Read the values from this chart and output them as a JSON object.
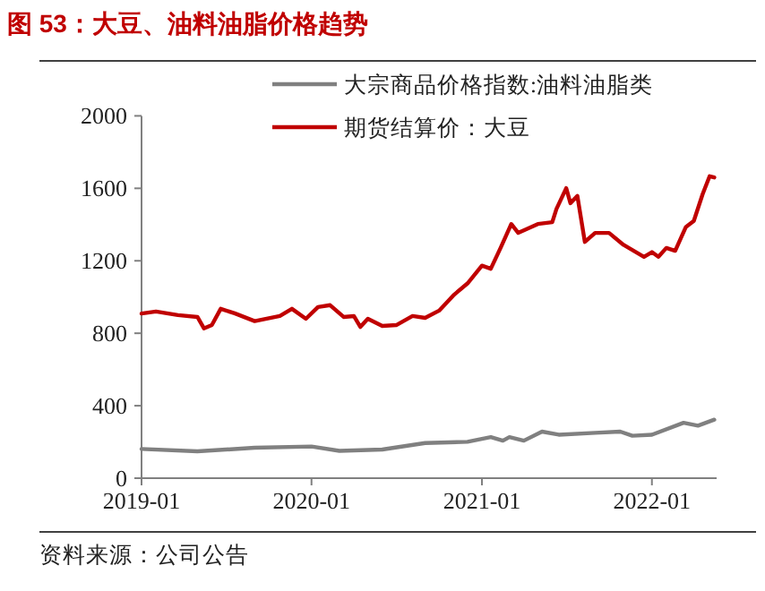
{
  "chart_data": {
    "type": "line",
    "title": "图 53：大豆、油料油脂价格趋势",
    "annotations": [
      "资料来源：公司公告"
    ],
    "xlim": [
      "2019-01-01",
      "2022-05-20"
    ],
    "xticks": [
      "2019-01",
      "2020-01",
      "2021-01",
      "2022-01"
    ],
    "ylim": [
      0,
      2000
    ],
    "yticks": [
      0,
      400,
      800,
      1200,
      1600,
      2000
    ],
    "grid": false,
    "legend": "top",
    "line_style": "solid",
    "series": [
      {
        "name": "大宗商品价格指数:油料油脂类",
        "color": "#808080",
        "x": [
          "2019-01-01",
          "2019-05-01",
          "2019-09-01",
          "2020-01-01",
          "2020-03-01",
          "2020-06-01",
          "2020-09-01",
          "2020-12-01",
          "2021-01-20",
          "2021-02-15",
          "2021-03-01",
          "2021-04-01",
          "2021-05-10",
          "2021-06-15",
          "2021-09-01",
          "2021-10-25",
          "2021-11-20",
          "2022-01-01",
          "2022-03-10",
          "2022-04-10",
          "2022-05-15"
        ],
        "values": [
          161,
          148,
          168,
          175,
          151,
          158,
          194,
          201,
          227,
          207,
          227,
          207,
          257,
          240,
          250,
          257,
          234,
          240,
          306,
          290,
          323
        ]
      },
      {
        "name": "期货结算价：大豆",
        "color": "#c00000",
        "x": [
          "2019-01-01",
          "2019-02-01",
          "2019-03-20",
          "2019-05-01",
          "2019-05-15",
          "2019-06-01",
          "2019-06-20",
          "2019-07-20",
          "2019-09-01",
          "2019-10-25",
          "2019-11-20",
          "2019-12-20",
          "2020-01-15",
          "2020-02-10",
          "2020-03-10",
          "2020-04-01",
          "2020-04-15",
          "2020-05-01",
          "2020-06-01",
          "2020-07-01",
          "2020-08-05",
          "2020-09-01",
          "2020-10-01",
          "2020-11-01",
          "2020-12-01",
          "2021-01-01",
          "2021-01-20",
          "2021-02-10",
          "2021-03-05",
          "2021-03-20",
          "2021-05-01",
          "2021-06-01",
          "2021-06-10",
          "2021-07-01",
          "2021-07-10",
          "2021-07-25",
          "2021-08-10",
          "2021-09-01",
          "2021-10-01",
          "2021-11-01",
          "2021-12-15",
          "2022-01-01",
          "2022-01-15",
          "2022-02-01",
          "2022-02-20",
          "2022-03-15",
          "2022-04-01",
          "2022-04-20",
          "2022-05-05",
          "2022-05-15"
        ],
        "values": [
          909,
          920,
          900,
          890,
          827,
          845,
          935,
          910,
          867,
          895,
          935,
          880,
          945,
          955,
          890,
          895,
          835,
          880,
          840,
          845,
          895,
          885,
          925,
          1010,
          1075,
          1173,
          1156,
          1271,
          1403,
          1354,
          1403,
          1413,
          1486,
          1601,
          1518,
          1558,
          1304,
          1354,
          1354,
          1288,
          1222,
          1248,
          1222,
          1271,
          1255,
          1387,
          1420,
          1568,
          1667,
          1660
        ]
      }
    ]
  }
}
